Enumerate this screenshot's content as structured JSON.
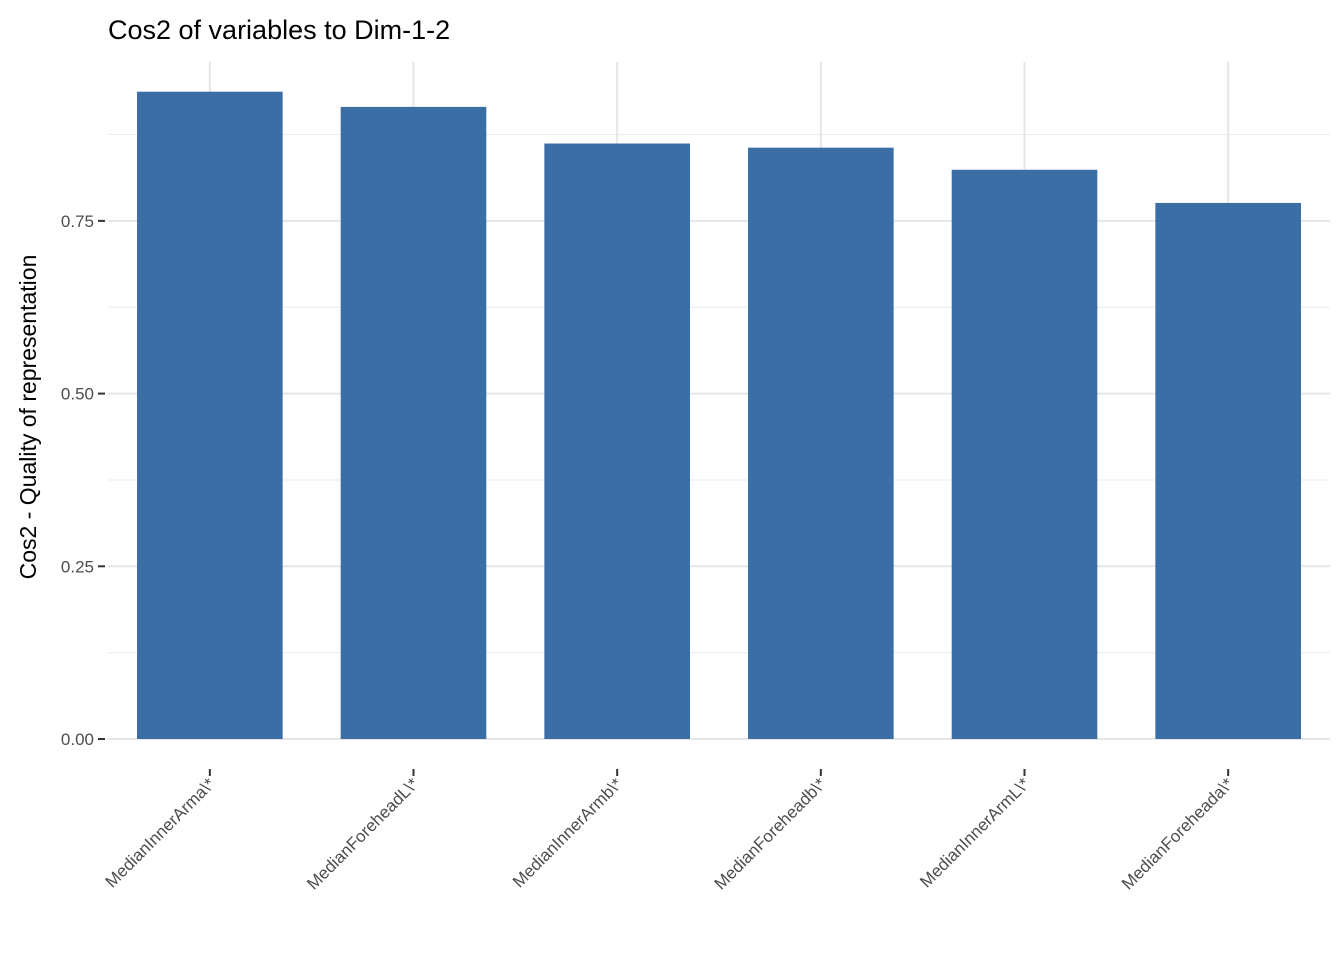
{
  "chart_data": {
    "type": "bar",
    "title": "Cos2 of variables to Dim-1-2",
    "xlabel": "",
    "ylabel": "Cos2 - Quality of representation",
    "categories": [
      "MedianInnerArma\\*",
      "MedianForeheadL\\*",
      "MedianInnerArmb\\*",
      "MedianForeheadb\\*",
      "MedianInnerArmL\\*",
      "MedianForeheada\\*"
    ],
    "values": [
      0.937,
      0.915,
      0.862,
      0.856,
      0.824,
      0.776
    ],
    "ylim": [
      0,
      0.98
    ],
    "yticks": [
      0,
      0.25,
      0.5,
      0.75
    ],
    "ytick_labels": [
      "0.00",
      "0.25",
      "0.50",
      "0.75"
    ],
    "grid": true,
    "bar_color": "#3a6ea5"
  }
}
